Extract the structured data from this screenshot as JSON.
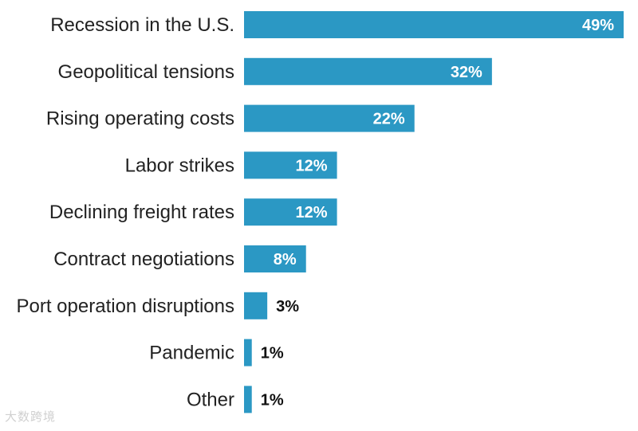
{
  "chart_data": {
    "type": "bar",
    "orientation": "horizontal",
    "title": "",
    "xlabel": "",
    "ylabel": "",
    "xlim": [
      0,
      49
    ],
    "categories": [
      "Recession in the U.S.",
      "Geopolitical tensions",
      "Rising operating costs",
      "Labor strikes",
      "Declining freight rates",
      "Contract negotiations",
      "Port operation disruptions",
      "Pandemic",
      "Other"
    ],
    "values": [
      49,
      32,
      22,
      12,
      12,
      8,
      3,
      1,
      1
    ],
    "value_labels": [
      "49%",
      "32%",
      "22%",
      "12%",
      "12%",
      "8%",
      "3%",
      "1%",
      "1%"
    ],
    "colors": {
      "bar": "#2b98c4",
      "label_inside": "#ffffff",
      "label_outside": "#111111"
    },
    "grid": false,
    "legend": "none"
  },
  "watermark": {
    "text": "大数跨境"
  }
}
